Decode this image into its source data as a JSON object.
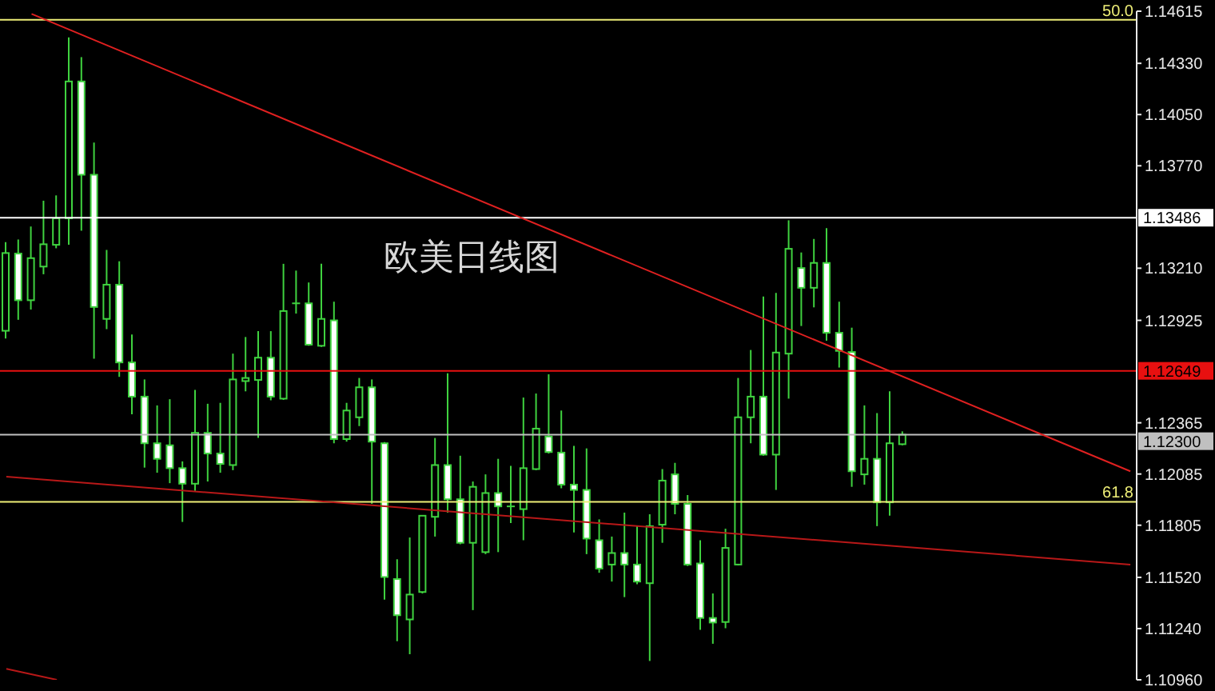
{
  "chart_data": {
    "type": "candlestick",
    "title": "欧美日线图",
    "categories": [
      null,
      null,
      null,
      null,
      null,
      null,
      null,
      null,
      null,
      null,
      null,
      null,
      null,
      null,
      null,
      null,
      null,
      null,
      null,
      null,
      null,
      null,
      null,
      null,
      null,
      null,
      null,
      null,
      null,
      null,
      null,
      null,
      null,
      null,
      null,
      null,
      null,
      null,
      null,
      null,
      null,
      null,
      null,
      null,
      null,
      null,
      null,
      null,
      null,
      null,
      null,
      null,
      null,
      null,
      null,
      null,
      null,
      null,
      null,
      null,
      null,
      null,
      null,
      null,
      null,
      null,
      null,
      null,
      null,
      null,
      null,
      null,
      null,
      null,
      null,
      null,
      null,
      null,
      null,
      null,
      null,
      null,
      null,
      null,
      null,
      null,
      null,
      null,
      null,
      null
    ],
    "color": "#3fd23f",
    "ohlc": [
      [
        1.12868,
        1.13353,
        1.12826,
        1.13293
      ],
      [
        1.1329,
        1.13367,
        1.12928,
        1.13035
      ],
      [
        1.13035,
        1.13438,
        1.12984,
        1.13265
      ],
      [
        1.13219,
        1.13579,
        1.13177,
        1.13341
      ],
      [
        1.13338,
        1.13608,
        1.13319,
        1.13483
      ],
      [
        1.13483,
        1.14472,
        1.13338,
        1.14231
      ],
      [
        1.14231,
        1.14364,
        1.13415,
        1.13721
      ],
      [
        1.13721,
        1.13897,
        1.12715,
        1.12998
      ],
      [
        1.12933,
        1.1331,
        1.12877,
        1.1312
      ],
      [
        1.1312,
        1.13248,
        1.12616,
        1.12695
      ],
      [
        1.12695,
        1.12848,
        1.12412,
        1.12508
      ],
      [
        1.12508,
        1.12602,
        1.1212,
        1.12253
      ],
      [
        1.12253,
        1.1246,
        1.12092,
        1.12168
      ],
      [
        1.12242,
        1.12494,
        1.12035,
        1.12117
      ],
      [
        1.12117,
        1.12154,
        1.11823,
        1.12032
      ],
      [
        1.12032,
        1.12545,
        1.11993,
        1.1231
      ],
      [
        1.1231,
        1.12469,
        1.12044,
        1.12197
      ],
      [
        1.12197,
        1.12474,
        1.12092,
        1.1214
      ],
      [
        1.12134,
        1.12743,
        1.12106,
        1.12602
      ],
      [
        1.12593,
        1.12834,
        1.12537,
        1.1261
      ],
      [
        1.12599,
        1.12866,
        1.12282,
        1.12721
      ],
      [
        1.12721,
        1.12866,
        1.12488,
        1.12508
      ],
      [
        1.12497,
        1.13234,
        1.1249,
        1.12976
      ],
      [
        1.13018,
        1.13197,
        1.12962,
        1.13018
      ],
      [
        1.13018,
        1.13132,
        1.12786,
        1.12792
      ],
      [
        1.12786,
        1.13234,
        1.1278,
        1.12933
      ],
      [
        1.12925,
        1.13027,
        1.12253,
        1.12276
      ],
      [
        1.12276,
        1.12474,
        1.12262,
        1.12432
      ],
      [
        1.12395,
        1.1261,
        1.12347,
        1.12559
      ],
      [
        1.12559,
        1.12602,
        1.11922,
        1.12262
      ],
      [
        1.12253,
        1.1226,
        1.11398,
        1.11522
      ],
      [
        1.11511,
        1.11619,
        1.11171,
        1.11313
      ],
      [
        1.1129,
        1.11738,
        1.111,
        1.11426
      ],
      [
        1.1144,
        1.1186,
        1.11432,
        1.11857
      ],
      [
        1.11851,
        1.12282,
        1.11743,
        1.12134
      ],
      [
        1.12134,
        1.12636,
        1.11874,
        1.11947
      ],
      [
        1.11947,
        1.12185,
        1.11701,
        1.11709
      ],
      [
        1.11709,
        1.12044,
        1.11341,
        1.12015
      ],
      [
        1.11658,
        1.12083,
        1.11647,
        1.11981
      ],
      [
        1.11981,
        1.12168,
        1.11658,
        1.11908
      ],
      [
        1.11908,
        1.12129,
        1.11817,
        1.11908
      ],
      [
        1.11893,
        1.12503,
        1.11723,
        1.12117
      ],
      [
        1.12112,
        1.12525,
        1.12106,
        1.12333
      ],
      [
        1.1229,
        1.1263,
        1.12197,
        1.12205
      ],
      [
        1.12202,
        1.12432,
        1.12007,
        1.12027
      ],
      [
        1.12027,
        1.12239,
        1.11766,
        1.11998
      ],
      [
        1.11998,
        1.12225,
        1.11647,
        1.11732
      ],
      [
        1.11723,
        1.11837,
        1.11545,
        1.11568
      ],
      [
        1.1159,
        1.11743,
        1.11497,
        1.11653
      ],
      [
        1.11653,
        1.11874,
        1.11412,
        1.1159
      ],
      [
        1.1159,
        1.118,
        1.11483,
        1.11497
      ],
      [
        1.11488,
        1.11865,
        1.11063,
        1.118
      ],
      [
        1.11808,
        1.12112,
        1.11709,
        1.12049
      ],
      [
        1.12083,
        1.12146,
        1.11865,
        1.11922
      ],
      [
        1.11922,
        1.1197,
        1.11582,
        1.1159
      ],
      [
        1.11596,
        1.11723,
        1.11233,
        1.11298
      ],
      [
        1.11298,
        1.11432,
        1.11157,
        1.11273
      ],
      [
        1.11276,
        1.11786,
        1.11242,
        1.11681
      ],
      [
        1.1159,
        1.1261,
        1.11585,
        1.12395
      ],
      [
        1.12395,
        1.12763,
        1.12253,
        1.12508
      ],
      [
        1.12508,
        1.13055,
        1.12185,
        1.12191
      ],
      [
        1.12191,
        1.13075,
        1.11998,
        1.12749
      ],
      [
        1.12743,
        1.13472,
        1.12497,
        1.13316
      ],
      [
        1.13211,
        1.13296,
        1.12894,
        1.13103
      ],
      [
        1.13103,
        1.1337,
        1.12996,
        1.13239
      ],
      [
        1.13239,
        1.13429,
        1.12814,
        1.12857
      ],
      [
        1.12857,
        1.13027,
        1.12667,
        1.12758
      ],
      [
        1.12752,
        1.12885,
        1.12015,
        1.121
      ],
      [
        1.12083,
        1.1246,
        1.12027,
        1.12168
      ],
      [
        1.12168,
        1.12418,
        1.118,
        1.1193
      ],
      [
        1.1193,
        1.12537,
        1.11857,
        1.12253
      ],
      [
        1.12248,
        1.12318,
        1.12242,
        1.123
      ],
      null,
      null,
      null,
      null,
      null,
      null,
      null,
      null,
      null,
      null,
      null,
      null,
      null,
      null,
      null,
      null,
      null,
      null
    ],
    "colors": [
      "#000000",
      "#ffffff",
      "#000000",
      "#000000",
      "#000000",
      "#000000",
      "#ffffff",
      "#ffffff",
      "#000000",
      "#ffffff",
      "#ffffff",
      "#ffffff",
      "#ffffff",
      "#ffffff",
      "#ffffff",
      "#000000",
      "#ffffff",
      "#ffffff",
      "#000000",
      "#000000",
      "#000000",
      "#ffffff",
      "#000000",
      "#3fd23f",
      "#ffffff",
      "#000000",
      "#ffffff",
      "#000000",
      "#000000",
      "#ffffff",
      "#ffffff",
      "#ffffff",
      "#000000",
      "#000000",
      "#000000",
      "#ffffff",
      "#ffffff",
      "#000000",
      "#000000",
      "#ffffff",
      "#3fd23f",
      "#000000",
      "#000000",
      "#ffffff",
      "#ffffff",
      "#ffffff",
      "#ffffff",
      "#ffffff",
      "#000000",
      "#ffffff",
      "#ffffff",
      "#000000",
      "#000000",
      "#ffffff",
      "#ffffff",
      "#ffffff",
      "#ffffff",
      "#000000",
      "#000000",
      "#000000",
      "#ffffff",
      "#000000",
      "#000000",
      "#ffffff",
      "#000000",
      "#ffffff",
      "#ffffff",
      "#ffffff",
      "#000000",
      "#ffffff",
      "#000000",
      "#000000",
      null,
      null,
      null,
      null,
      null,
      null,
      null,
      null,
      null,
      null,
      null,
      null,
      null,
      null,
      null,
      null,
      null,
      null
    ],
    "series": [
      {
        "type": "line",
        "color": "#e02020",
        "values": [
          null,
          null,
          1.146,
          null,
          null,
          null,
          null,
          null,
          null,
          null,
          null,
          null,
          null,
          null,
          null,
          null,
          null,
          null,
          null,
          null,
          null,
          null,
          null,
          null,
          null,
          null,
          null,
          null,
          null,
          null,
          null,
          null,
          null,
          null,
          null,
          null,
          null,
          null,
          null,
          null,
          null,
          null,
          null,
          null,
          null,
          null,
          null,
          null,
          null,
          null,
          null,
          null,
          null,
          null,
          null,
          null,
          null,
          null,
          null,
          null,
          null,
          null,
          null,
          null,
          null,
          null,
          null,
          null,
          null,
          null,
          null,
          null,
          null,
          null,
          null,
          null,
          null,
          null,
          null,
          null,
          null,
          null,
          null,
          null,
          null,
          null,
          null,
          null,
          null,
          1.121
        ]
      },
      {
        "type": "line",
        "color": "#b81818",
        "values": [
          1.1207,
          null,
          null,
          null,
          null,
          null,
          null,
          null,
          null,
          null,
          null,
          null,
          null,
          null,
          null,
          null,
          null,
          null,
          null,
          null,
          null,
          null,
          null,
          null,
          null,
          null,
          null,
          null,
          null,
          null,
          null,
          null,
          null,
          null,
          null,
          null,
          null,
          null,
          null,
          null,
          null,
          null,
          null,
          null,
          null,
          null,
          null,
          null,
          null,
          null,
          null,
          null,
          null,
          null,
          null,
          null,
          null,
          null,
          null,
          null,
          null,
          null,
          null,
          null,
          null,
          null,
          null,
          null,
          null,
          null,
          null,
          null,
          null,
          null,
          null,
          null,
          null,
          null,
          null,
          null,
          null,
          null,
          null,
          null,
          null,
          null,
          null,
          null,
          null,
          1.1159
        ]
      },
      {
        "type": "line",
        "color": "#b81818",
        "values": [
          1.1102,
          null,
          null,
          null,
          1.1096,
          null,
          null,
          null,
          null,
          null,
          null,
          null,
          null,
          null,
          null,
          null,
          null,
          null,
          null,
          null,
          null,
          null,
          null,
          null,
          null,
          null,
          null,
          null,
          null,
          null,
          null,
          null,
          null,
          null,
          null,
          null,
          null,
          null,
          null,
          null,
          null,
          null,
          null,
          null,
          null,
          null,
          null,
          null,
          null,
          null,
          null,
          null,
          null,
          null,
          null,
          null,
          null,
          null,
          null,
          null,
          null,
          null,
          null,
          null,
          null,
          null,
          null,
          null,
          null,
          null,
          null,
          null,
          null,
          null,
          null,
          null,
          null,
          null,
          null,
          null,
          null,
          null,
          null,
          null,
          null,
          null,
          null,
          null,
          null,
          null
        ]
      }
    ],
    "ylim": [
      1.1096,
      1.14615
    ],
    "yticks": [
      1.14615,
      {
        "value": 1.1433,
        "label": "1.14330"
      },
      {
        "value": 1.1405,
        "label": "1.14050"
      },
      {
        "value": 1.1377,
        "label": "1.13770"
      },
      {
        "value": 1.1321,
        "label": "1.13210"
      },
      1.12925,
      1.12365,
      1.12085,
      1.11805,
      {
        "value": 1.1152,
        "label": "1.11520"
      },
      {
        "value": 1.1124,
        "label": "1.11240"
      },
      {
        "value": 1.1096,
        "label": "1.10960"
      }
    ],
    "ref_lines": [
      {
        "axis": "y",
        "value": 1.14568,
        "color": "#eeee77"
      },
      {
        "axis": "y",
        "value": 1.13486,
        "label": "1.13486",
        "color": "#ffffff"
      },
      {
        "axis": "y",
        "value": 1.12649,
        "label": "1.12649",
        "color": "#e81010"
      },
      {
        "axis": "y",
        "value": 1.123,
        "label": "1.12300",
        "color": "#c0c0c0"
      },
      {
        "axis": "y",
        "value": 1.11933,
        "color": "#eeee77"
      }
    ],
    "annotations": [
      {
        "text": "50.0",
        "y": 1.14568
      },
      {
        "text": "61.8",
        "y": 1.11933
      }
    ],
    "tick_labels": "y"
  }
}
